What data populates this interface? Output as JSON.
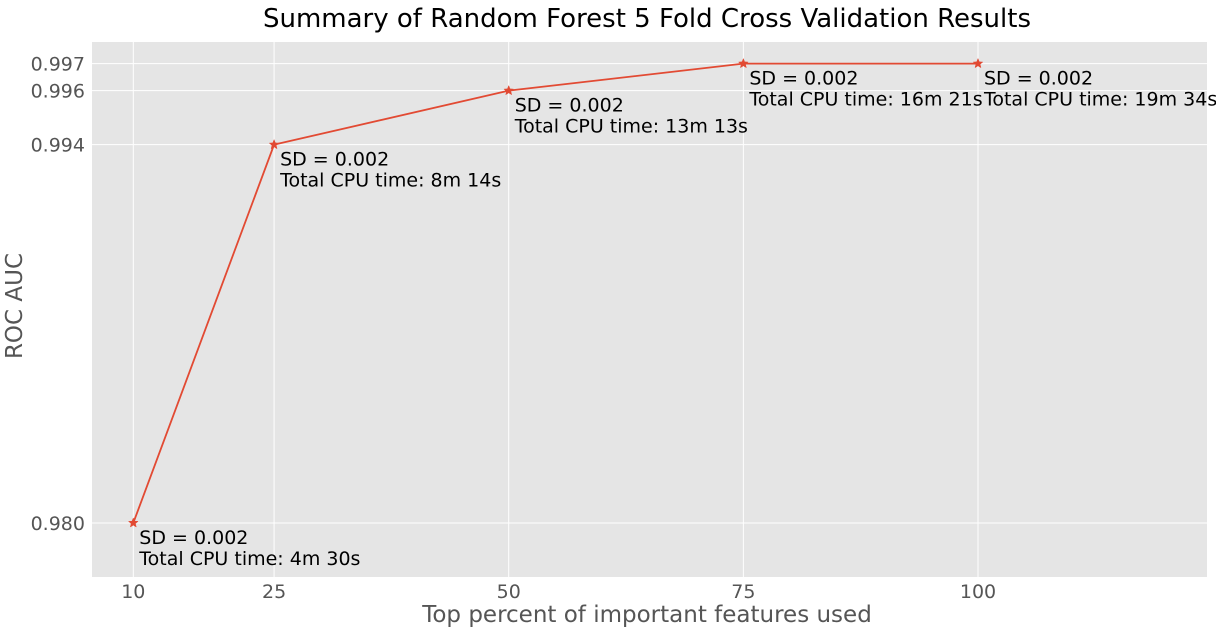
{
  "chart_data": {
    "type": "line",
    "title": "Summary of Random Forest 5 Fold Cross Validation Results",
    "xlabel": "Top percent of important features used",
    "ylabel": "ROC AUC",
    "x": [
      10,
      25,
      50,
      75,
      100
    ],
    "series": [
      {
        "values": [
          0.98,
          0.994,
          0.996,
          0.997,
          0.997
        ],
        "color": "#e24a33",
        "marker": "star"
      }
    ],
    "x_ticks": [
      "10",
      "25",
      "50",
      "75",
      "100"
    ],
    "y_ticks": [
      "0.980",
      "0.994",
      "0.996",
      "0.997"
    ],
    "xlim": [
      5.6,
      124.4
    ],
    "ylim": [
      0.978,
      0.9978
    ],
    "grid": true,
    "background_color": "#e5e5e5",
    "annotations": [
      {
        "line1": "SD = 0.002",
        "line2": "Total CPU time: 4m 30s"
      },
      {
        "line1": "SD = 0.002",
        "line2": "Total CPU time: 8m 14s"
      },
      {
        "line1": "SD = 0.002",
        "line2": "Total CPU time: 13m 13s"
      },
      {
        "line1": "SD = 0.002",
        "line2": "Total CPU time: 16m 21s"
      },
      {
        "line1": "SD = 0.002",
        "line2": "Total CPU time: 19m 34s"
      }
    ]
  }
}
